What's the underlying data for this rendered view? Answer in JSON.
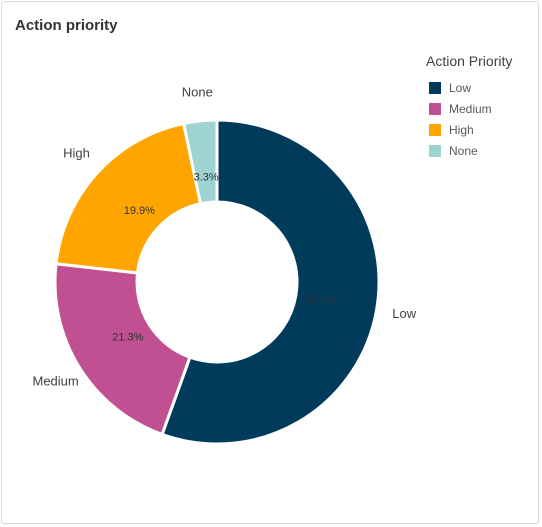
{
  "header": {
    "title": "Action priority"
  },
  "legend": {
    "title": "Action Priority",
    "placement": "top-right"
  },
  "chart_data": {
    "type": "pie",
    "variant": "donut",
    "title": "Action priority",
    "categories": [
      "Low",
      "Medium",
      "High",
      "None"
    ],
    "values": [
      55.5,
      21.3,
      19.9,
      3.3
    ],
    "value_labels": [
      "55.5%",
      "21.3%",
      "19.9%",
      "3.3%"
    ],
    "colors": [
      "#003b5c",
      "#c05091",
      "#ffa500",
      "#9dd3d0"
    ],
    "legend_title": "Action Priority",
    "legend_placement": "top-right"
  }
}
